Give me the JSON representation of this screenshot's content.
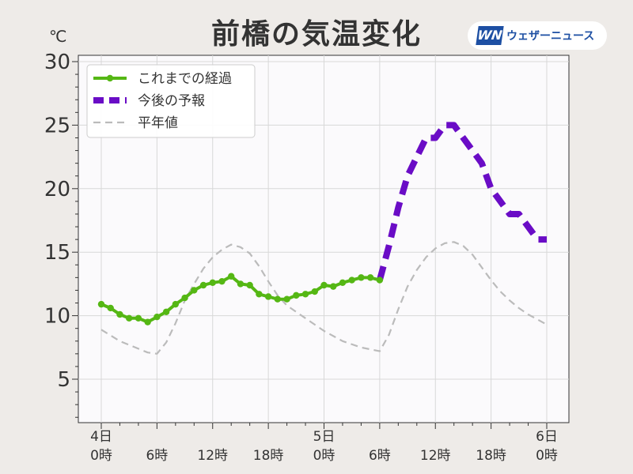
{
  "header": {
    "title": "前橋の気温変化",
    "unit": "℃",
    "logo_mark": "WN",
    "logo_text": "ウェザーニュース"
  },
  "colors": {
    "observed": "#55b714",
    "forecast": "#6a0cc6",
    "normal": "#bbbbbb",
    "brand": "#1d4fa3"
  },
  "chart_data": {
    "type": "line",
    "ylim": [
      2,
      30
    ],
    "xlim": [
      0,
      48
    ],
    "y_ticks": [
      "5",
      "10",
      "15",
      "20",
      "25",
      "30"
    ],
    "y_tick_values": [
      5,
      10,
      15,
      20,
      25,
      30
    ],
    "x_ticks": [
      {
        "x": 0,
        "line1": "4日",
        "line2": "0時"
      },
      {
        "x": 6,
        "line1": "",
        "line2": "6時"
      },
      {
        "x": 12,
        "line1": "",
        "line2": "12時"
      },
      {
        "x": 18,
        "line1": "",
        "line2": "18時"
      },
      {
        "x": 24,
        "line1": "5日",
        "line2": "0時"
      },
      {
        "x": 30,
        "line1": "",
        "line2": "6時"
      },
      {
        "x": 36,
        "line1": "",
        "line2": "12時"
      },
      {
        "x": 42,
        "line1": "",
        "line2": "18時"
      },
      {
        "x": 48,
        "line1": "6日",
        "line2": "0時"
      }
    ],
    "grid": true,
    "legend_position": "top-left",
    "series": [
      {
        "name": "これまでの経過",
        "style": "solid-markers",
        "x": [
          0,
          1,
          2,
          3,
          4,
          5,
          6,
          7,
          8,
          9,
          10,
          11,
          12,
          13,
          14,
          15,
          16,
          17,
          18,
          19,
          20,
          21,
          22,
          23,
          24,
          25,
          26,
          27,
          28,
          29,
          30
        ],
        "y": [
          10.9,
          10.6,
          10.1,
          9.8,
          9.8,
          9.5,
          9.9,
          10.3,
          10.9,
          11.4,
          12.0,
          12.4,
          12.6,
          12.7,
          13.1,
          12.5,
          12.4,
          11.7,
          11.5,
          11.3,
          11.3,
          11.6,
          11.7,
          11.9,
          12.4,
          12.3,
          12.6,
          12.8,
          13.0,
          13.0,
          12.8
        ]
      },
      {
        "name": "今後の予報",
        "style": "thick-dashed",
        "x": [
          30,
          31,
          32,
          33,
          34,
          35,
          36,
          37,
          38,
          39,
          40,
          41,
          42,
          43,
          44,
          45,
          46,
          47,
          48
        ],
        "y": [
          12.8,
          15.5,
          18.5,
          21.0,
          22.5,
          24.0,
          24.0,
          25.0,
          25.0,
          24.0,
          23.0,
          22.0,
          20.0,
          19.0,
          18.0,
          18.0,
          17.0,
          16.0,
          16.0
        ]
      },
      {
        "name": "平年値",
        "style": "thin-dashed",
        "x": [
          0,
          2,
          4,
          5,
          6,
          7,
          8,
          9,
          10,
          11,
          12,
          13,
          14,
          15,
          16,
          17,
          18,
          19,
          20,
          21,
          22,
          23,
          24,
          26,
          28,
          30,
          31,
          32,
          33,
          34,
          35,
          36,
          37,
          38,
          39,
          40,
          41,
          42,
          43,
          44,
          45,
          46,
          47,
          48
        ],
        "y": [
          8.9,
          8.0,
          7.4,
          7.1,
          7.0,
          7.9,
          9.4,
          11.2,
          12.5,
          13.7,
          14.6,
          15.2,
          15.6,
          15.4,
          14.9,
          13.9,
          12.7,
          11.6,
          10.8,
          10.3,
          9.8,
          9.3,
          8.8,
          8.0,
          7.5,
          7.2,
          8.5,
          10.5,
          12.3,
          13.6,
          14.6,
          15.3,
          15.7,
          15.8,
          15.5,
          14.8,
          13.8,
          12.8,
          11.9,
          11.2,
          10.6,
          10.1,
          9.7,
          9.3
        ]
      }
    ]
  }
}
